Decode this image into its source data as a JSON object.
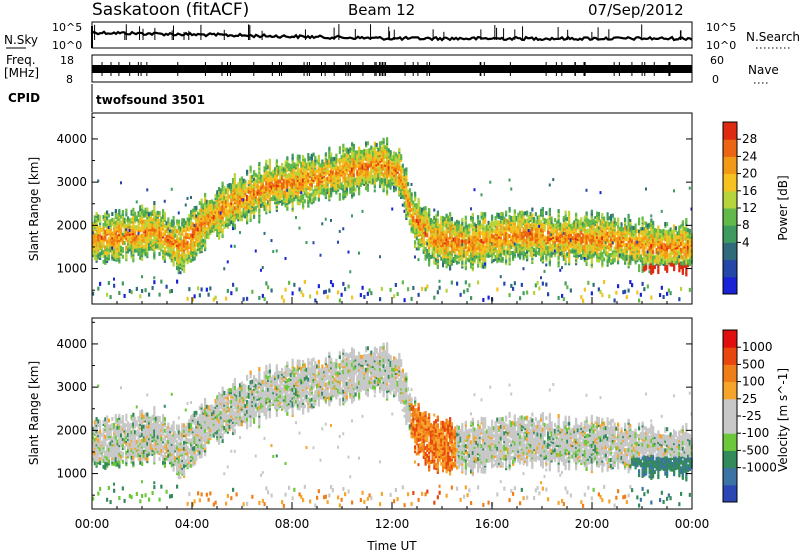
{
  "header": {
    "station": "Saskatoon (fitACF)",
    "beam": "Beam 12",
    "date": "07/Sep/2012"
  },
  "strip": {
    "nsky_label": "N.Sky",
    "nsky_ticks": [
      "10^5",
      "10^0"
    ],
    "nsearch_label": "N.Search",
    "nsearch_ticks": [
      "10^5",
      "10^0"
    ],
    "freq_label": "Freq.",
    "freq_unit": "[MHz]",
    "freq_ticks": [
      "18",
      "8"
    ],
    "nave_label": "Nave",
    "nave_ticks": [
      "60",
      "0"
    ],
    "cpid_label": "CPID",
    "cpid_value": "twofsound 3501"
  },
  "chart_data": [
    {
      "type": "heatmap",
      "panel": "power",
      "ylabel": "Slant Range [km]",
      "ylim": [
        180,
        4600
      ],
      "yticks": [
        "4000",
        "3000",
        "2000",
        "1000"
      ],
      "colorbar": {
        "label": "Power [dB]",
        "ticks": [
          "28",
          "24",
          "20",
          "16",
          "12",
          "8",
          "4"
        ],
        "colors": [
          "#1a22d8",
          "#2547a8",
          "#2f6b7a",
          "#3e9a5f",
          "#62b94a",
          "#b8d43c",
          "#f6c21f",
          "#f29a15",
          "#ec6512",
          "#dd2a10"
        ]
      },
      "echo_bands": [
        {
          "name": "main",
          "x": [
            0,
            1.5,
            2.5,
            3.5,
            4.5,
            5.5,
            7,
            9,
            10.5,
            11.5,
            12.3,
            12.8,
            13.5,
            15,
            17,
            19,
            20.5,
            21.5,
            22.5,
            23.5,
            24
          ],
          "y": [
            1700,
            1800,
            1900,
            1500,
            2100,
            2500,
            2900,
            3100,
            3300,
            3450,
            3200,
            2200,
            1700,
            1600,
            1800,
            1700,
            1700,
            1600,
            1500,
            1500,
            1500
          ],
          "width": 500,
          "power": 22
        }
      ]
    },
    {
      "type": "heatmap",
      "panel": "velocity",
      "xlabel": "Time UT",
      "ylabel": "Slant Range [km]",
      "xlim": [
        0,
        24
      ],
      "xticks": [
        "00:00",
        "04:00",
        "08:00",
        "12:00",
        "16:00",
        "20:00",
        "00:00"
      ],
      "ylim": [
        180,
        4600
      ],
      "yticks": [
        "4000",
        "3000",
        "2000",
        "1000"
      ],
      "colorbar": {
        "label": "Velocity [m s^-1]",
        "ticks": [
          "1000",
          "500",
          "100",
          "25",
          "-25",
          "-100",
          "-500",
          "-1000"
        ],
        "colors": [
          "#2a47b5",
          "#3b74a4",
          "#338a5a",
          "#6cc73a",
          "#c8c8c8",
          "#c8c8c8",
          "#f6a52a",
          "#f07e18",
          "#e8450f",
          "#e00e0e"
        ]
      }
    }
  ]
}
